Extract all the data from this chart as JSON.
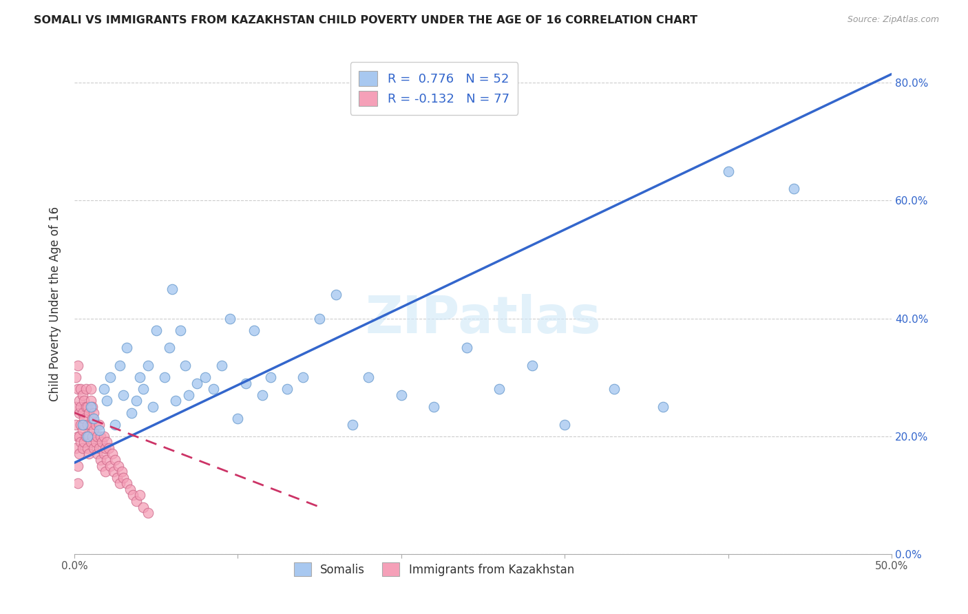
{
  "title": "SOMALI VS IMMIGRANTS FROM KAZAKHSTAN CHILD POVERTY UNDER THE AGE OF 16 CORRELATION CHART",
  "source": "Source: ZipAtlas.com",
  "ylabel": "Child Poverty Under the Age of 16",
  "xlim": [
    0.0,
    0.5
  ],
  "ylim": [
    0.0,
    0.85
  ],
  "yticks": [
    0.0,
    0.2,
    0.4,
    0.6,
    0.8
  ],
  "ytick_labels": [
    "0.0%",
    "20.0%",
    "40.0%",
    "60.0%",
    "80.0%"
  ],
  "somali_color": "#a8c8f0",
  "somali_edge_color": "#6699cc",
  "kaz_color": "#f5a0b8",
  "kaz_edge_color": "#cc6688",
  "trend_somali_color": "#3366cc",
  "trend_kaz_color": "#cc3366",
  "R_somali": 0.776,
  "N_somali": 52,
  "R_kaz": -0.132,
  "N_kaz": 77,
  "watermark": "ZIPatlas",
  "legend_somali": "Somalis",
  "legend_kaz": "Immigrants from Kazakhstan",
  "somali_x": [
    0.005,
    0.008,
    0.01,
    0.012,
    0.015,
    0.018,
    0.02,
    0.022,
    0.025,
    0.028,
    0.03,
    0.032,
    0.035,
    0.038,
    0.04,
    0.042,
    0.045,
    0.048,
    0.05,
    0.055,
    0.058,
    0.06,
    0.062,
    0.065,
    0.068,
    0.07,
    0.075,
    0.08,
    0.085,
    0.09,
    0.095,
    0.1,
    0.105,
    0.11,
    0.115,
    0.12,
    0.13,
    0.14,
    0.15,
    0.16,
    0.17,
    0.18,
    0.2,
    0.22,
    0.24,
    0.26,
    0.28,
    0.3,
    0.33,
    0.36,
    0.4,
    0.44
  ],
  "somali_y": [
    0.22,
    0.2,
    0.25,
    0.23,
    0.21,
    0.28,
    0.26,
    0.3,
    0.22,
    0.32,
    0.27,
    0.35,
    0.24,
    0.26,
    0.3,
    0.28,
    0.32,
    0.25,
    0.38,
    0.3,
    0.35,
    0.45,
    0.26,
    0.38,
    0.32,
    0.27,
    0.29,
    0.3,
    0.28,
    0.32,
    0.4,
    0.23,
    0.29,
    0.38,
    0.27,
    0.3,
    0.28,
    0.3,
    0.4,
    0.44,
    0.22,
    0.3,
    0.27,
    0.25,
    0.35,
    0.28,
    0.32,
    0.22,
    0.28,
    0.25,
    0.65,
    0.62
  ],
  "kaz_x": [
    0.001,
    0.001,
    0.001,
    0.001,
    0.002,
    0.002,
    0.002,
    0.002,
    0.002,
    0.003,
    0.003,
    0.003,
    0.003,
    0.004,
    0.004,
    0.004,
    0.004,
    0.005,
    0.005,
    0.005,
    0.005,
    0.006,
    0.006,
    0.006,
    0.006,
    0.007,
    0.007,
    0.007,
    0.008,
    0.008,
    0.008,
    0.009,
    0.009,
    0.009,
    0.01,
    0.01,
    0.01,
    0.01,
    0.011,
    0.011,
    0.011,
    0.012,
    0.012,
    0.012,
    0.013,
    0.013,
    0.014,
    0.014,
    0.015,
    0.015,
    0.016,
    0.016,
    0.017,
    0.017,
    0.018,
    0.018,
    0.019,
    0.019,
    0.02,
    0.02,
    0.021,
    0.022,
    0.023,
    0.024,
    0.025,
    0.026,
    0.027,
    0.028,
    0.029,
    0.03,
    0.032,
    0.034,
    0.036,
    0.038,
    0.04,
    0.042,
    0.045
  ],
  "kaz_y": [
    0.22,
    0.25,
    0.18,
    0.3,
    0.2,
    0.28,
    0.15,
    0.32,
    0.12,
    0.26,
    0.2,
    0.24,
    0.17,
    0.28,
    0.22,
    0.19,
    0.25,
    0.24,
    0.21,
    0.18,
    0.27,
    0.22,
    0.26,
    0.19,
    0.23,
    0.25,
    0.2,
    0.28,
    0.22,
    0.18,
    0.25,
    0.2,
    0.24,
    0.17,
    0.26,
    0.22,
    0.19,
    0.28,
    0.23,
    0.2,
    0.25,
    0.21,
    0.18,
    0.24,
    0.22,
    0.19,
    0.2,
    0.17,
    0.22,
    0.18,
    0.2,
    0.16,
    0.19,
    0.15,
    0.2,
    0.17,
    0.18,
    0.14,
    0.19,
    0.16,
    0.18,
    0.15,
    0.17,
    0.14,
    0.16,
    0.13,
    0.15,
    0.12,
    0.14,
    0.13,
    0.12,
    0.11,
    0.1,
    0.09,
    0.1,
    0.08,
    0.07
  ],
  "trend_somali_x0": 0.0,
  "trend_somali_y0": 0.155,
  "trend_somali_x1": 0.5,
  "trend_somali_y1": 0.815,
  "trend_kaz_x0": 0.0,
  "trend_kaz_y0": 0.24,
  "trend_kaz_x1": 0.15,
  "trend_kaz_y1": 0.08
}
